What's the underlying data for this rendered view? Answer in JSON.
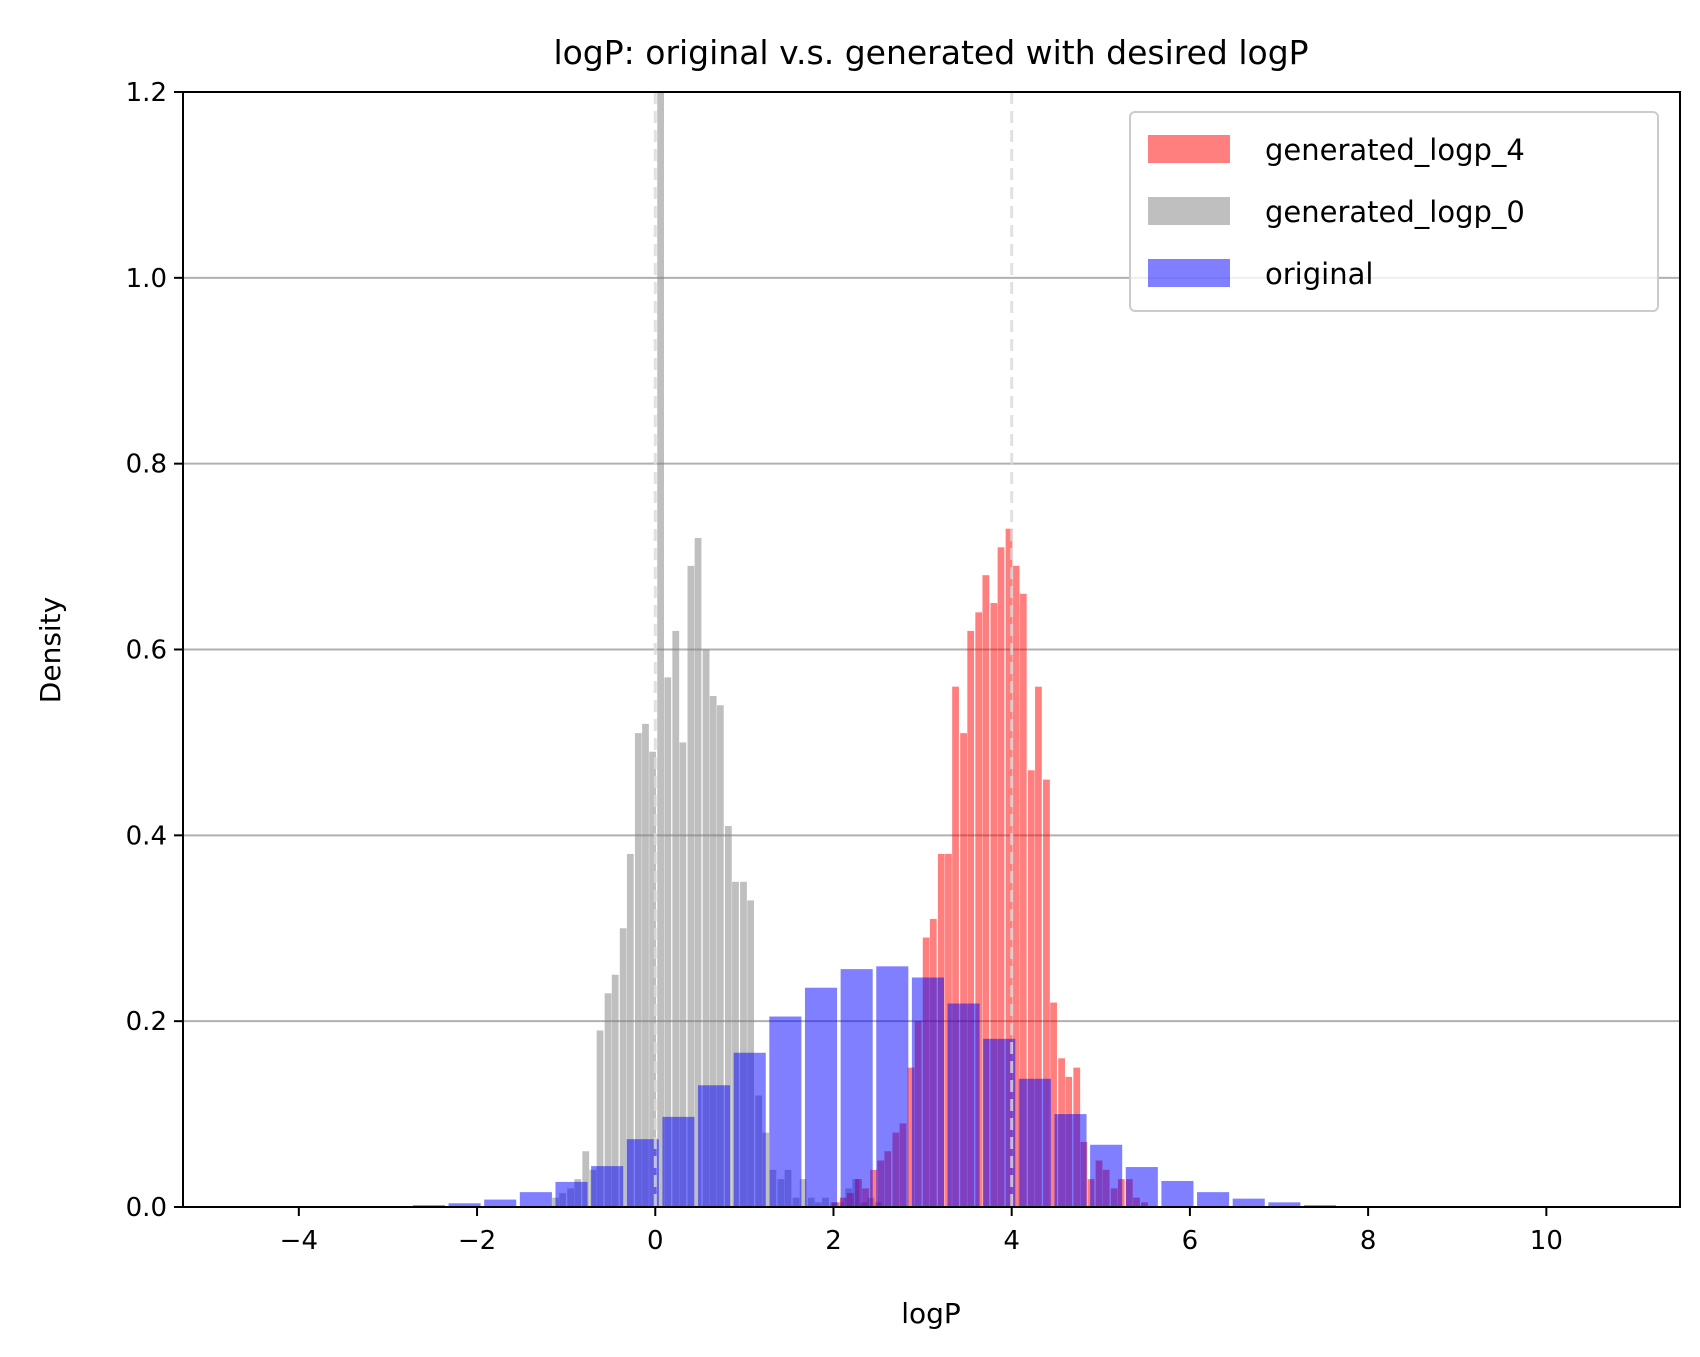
{
  "chart_data": {
    "type": "bar",
    "title": "logP: original v.s. generated with desired logP",
    "xlabel": "logP",
    "ylabel": "Density",
    "xlim": [
      -5.3,
      11.5
    ],
    "ylim": [
      0,
      1.2
    ],
    "x_ticks": [
      -4,
      -2,
      0,
      2,
      4,
      6,
      8,
      10
    ],
    "x_tick_labels": [
      "−4",
      "−2",
      "0",
      "2",
      "4",
      "6",
      "8",
      "10"
    ],
    "y_ticks": [
      0.0,
      0.2,
      0.4,
      0.6,
      0.8,
      1.0,
      1.2
    ],
    "y_tick_labels": [
      "0.0",
      "0.2",
      "0.4",
      "0.6",
      "0.8",
      "1.0",
      "1.2"
    ],
    "grid": "horizontal",
    "reference_lines": [
      0,
      4
    ],
    "legend_position": "top-right",
    "series": [
      {
        "name": "generated_logp_4",
        "color": "#ff0000",
        "opacity": 0.5,
        "bin_width": 0.0844,
        "x": [
          2.02,
          2.11,
          2.19,
          2.28,
          2.36,
          2.45,
          2.53,
          2.61,
          2.7,
          2.78,
          2.87,
          2.95,
          3.04,
          3.12,
          3.21,
          3.29,
          3.37,
          3.46,
          3.54,
          3.63,
          3.71,
          3.8,
          3.88,
          3.97,
          4.05,
          4.13,
          4.22,
          4.3,
          4.39,
          4.47,
          4.56,
          4.64,
          4.73,
          4.81,
          4.89,
          4.98,
          5.06,
          5.15,
          5.23,
          5.32,
          5.4,
          5.49
        ],
        "values": [
          0.005,
          0.01,
          0.015,
          0.03,
          0.02,
          0.04,
          0.05,
          0.06,
          0.08,
          0.09,
          0.15,
          0.2,
          0.29,
          0.31,
          0.38,
          0.38,
          0.56,
          0.51,
          0.62,
          0.64,
          0.68,
          0.65,
          0.71,
          0.73,
          0.69,
          0.66,
          0.47,
          0.56,
          0.46,
          0.22,
          0.16,
          0.14,
          0.15,
          0.07,
          0.03,
          0.05,
          0.04,
          0.02,
          0.03,
          0.03,
          0.01,
          0.005
        ]
      },
      {
        "name": "generated_logp_0",
        "color": "#808080",
        "opacity": 0.5,
        "bin_width": 0.0844,
        "x": [
          -1.12,
          -1.04,
          -0.95,
          -0.87,
          -0.78,
          -0.7,
          -0.62,
          -0.53,
          -0.45,
          -0.36,
          -0.28,
          -0.19,
          -0.11,
          -0.03,
          0.06,
          0.14,
          0.23,
          0.31,
          0.4,
          0.48,
          0.57,
          0.65,
          0.73,
          0.82,
          0.9,
          0.99,
          1.07,
          1.16,
          1.24,
          1.32,
          1.41,
          1.49,
          1.58,
          1.66,
          1.75,
          1.83,
          1.91,
          2.0,
          2.08,
          2.17,
          2.25,
          2.34,
          2.42,
          2.5
        ],
        "values": [
          0.01,
          0.015,
          0.02,
          0.03,
          0.06,
          0.04,
          0.19,
          0.23,
          0.25,
          0.3,
          0.38,
          0.51,
          0.52,
          0.49,
          1.2,
          0.57,
          0.62,
          0.5,
          0.69,
          0.72,
          0.6,
          0.55,
          0.54,
          0.41,
          0.35,
          0.35,
          0.33,
          0.12,
          0.08,
          0.04,
          0.03,
          0.04,
          0.01,
          0.03,
          0.01,
          0.005,
          0.01,
          0.005,
          0.005,
          0.02,
          0.03,
          0.005,
          0.01,
          0.005
        ]
      },
      {
        "name": "original",
        "color": "#0000ff",
        "opacity": 0.5,
        "bin_width": 0.4,
        "x": [
          -2.94,
          -2.54,
          -2.14,
          -1.74,
          -1.34,
          -0.94,
          -0.54,
          -0.14,
          0.26,
          0.66,
          1.06,
          1.46,
          1.86,
          2.26,
          2.66,
          3.06,
          3.46,
          3.86,
          4.26,
          4.66,
          5.06,
          5.46,
          5.86,
          6.26,
          6.66,
          7.06,
          7.46,
          7.86
        ],
        "values": [
          0.0,
          0.002,
          0.004,
          0.008,
          0.016,
          0.027,
          0.044,
          0.073,
          0.097,
          0.131,
          0.166,
          0.205,
          0.236,
          0.256,
          0.259,
          0.247,
          0.219,
          0.181,
          0.138,
          0.1,
          0.067,
          0.043,
          0.028,
          0.016,
          0.009,
          0.005,
          0.002,
          0.001
        ]
      }
    ]
  }
}
